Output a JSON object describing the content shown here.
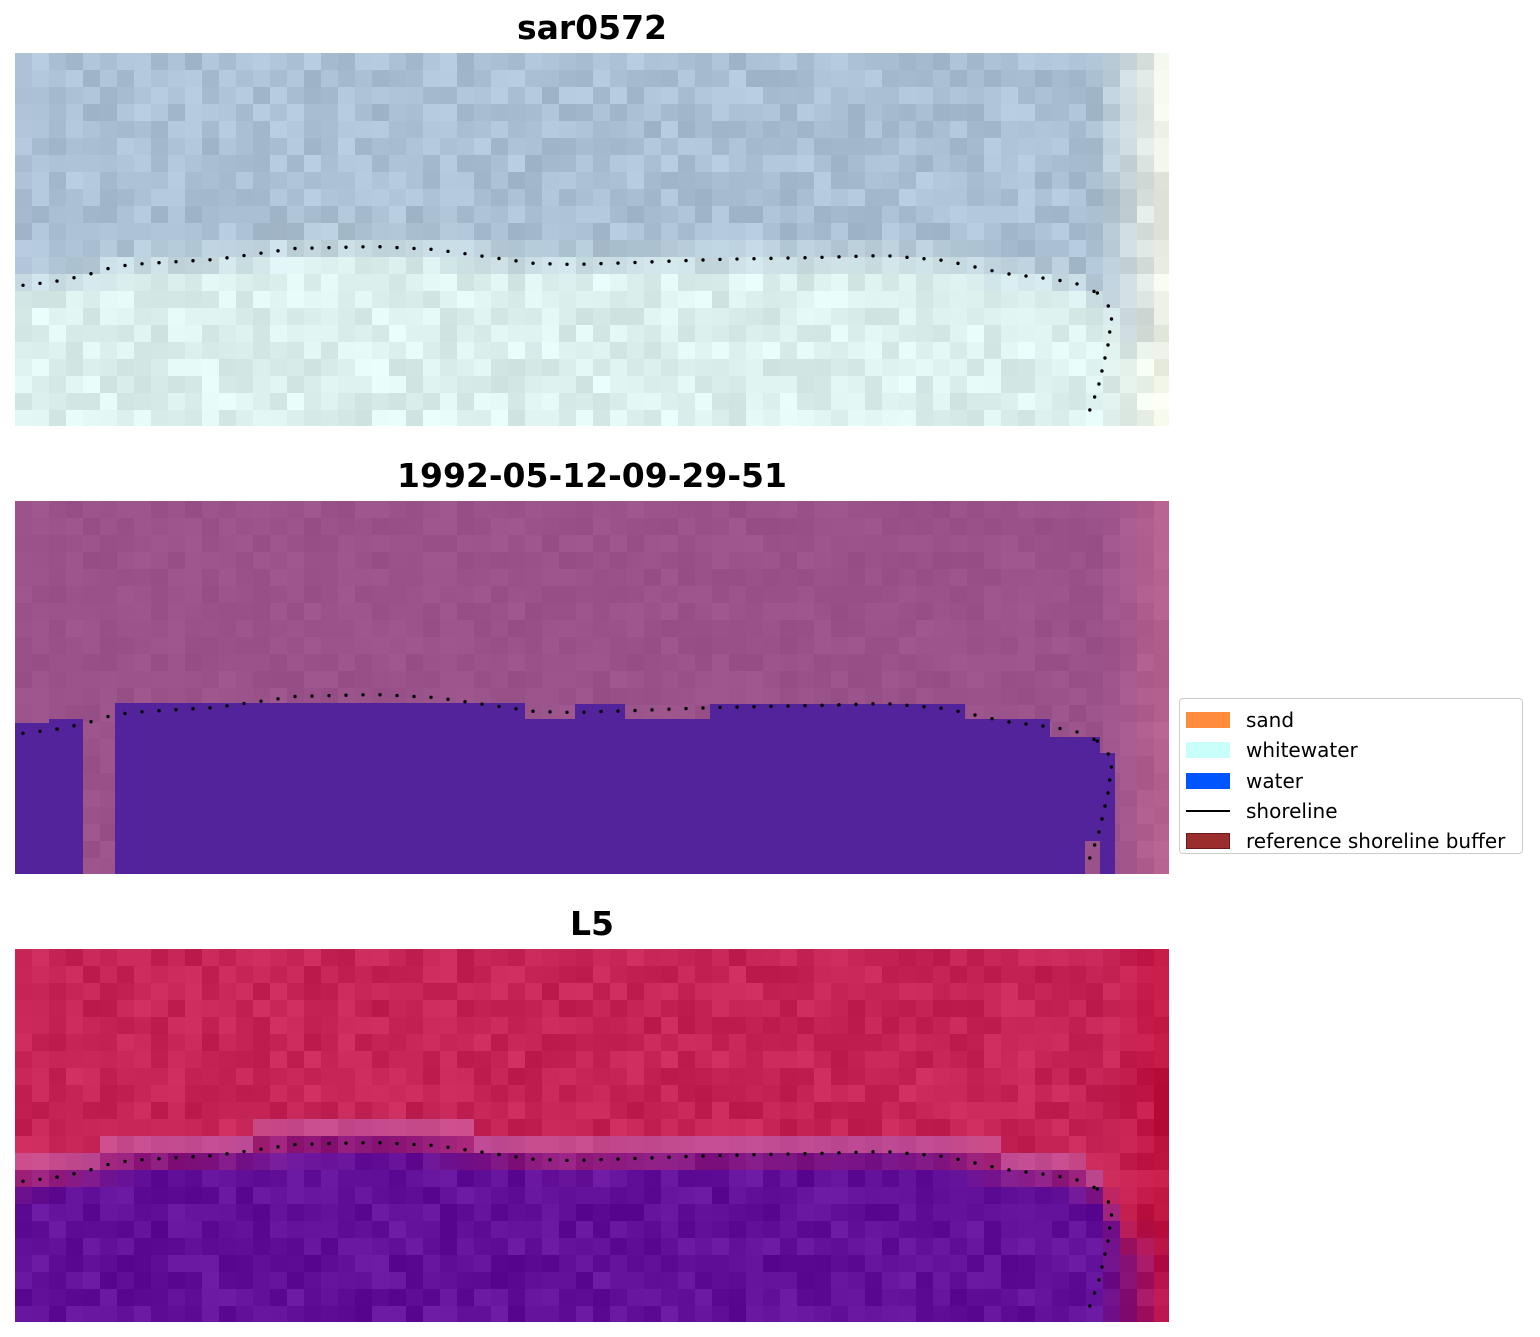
{
  "panels": [
    {
      "title": "sar0572",
      "style": "sar"
    },
    {
      "title": "1992-05-12-09-29-51",
      "style": "classified"
    },
    {
      "title": "L5",
      "style": "landsat"
    }
  ],
  "legend": {
    "items": [
      {
        "label": "sand",
        "type": "patch",
        "color": "#ff8c3c"
      },
      {
        "label": "whitewater",
        "type": "patch",
        "color": "#c8fffa"
      },
      {
        "label": "water",
        "type": "patch",
        "color": "#0055ff"
      },
      {
        "label": "shoreline",
        "type": "line",
        "color": "#000000"
      },
      {
        "label": "reference shoreline buffer",
        "type": "patch",
        "color": "#9b2d2d",
        "edge": "#6a1a1a"
      }
    ]
  },
  "colors": {
    "sar_sea": "#abc0d2",
    "sar_land": "#dcf0ee",
    "classified_sea": "#9a528a",
    "classified_water": "#52239a",
    "landsat_sea": "#c42556",
    "landsat_land": "#62109a",
    "shoreline_dots": "#000000"
  }
}
